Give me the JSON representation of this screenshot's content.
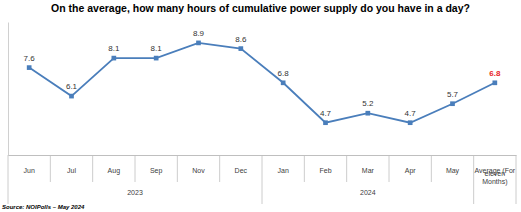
{
  "chart_data": {
    "type": "line",
    "title": "On the average, how many hours of cumulative power supply do you have in a day?",
    "categories": [
      "Jun",
      "Jul",
      "Aug",
      "Sep",
      "Nov",
      "Dec",
      "Jan",
      "Feb",
      "Mar",
      "Apr",
      "May",
      "Average (For eleven Months)"
    ],
    "x_groups": [
      "2023",
      "2023",
      "2023",
      "2023",
      "2023",
      "2023",
      "2024",
      "2024",
      "2024",
      "2024",
      "2024",
      null
    ],
    "values": [
      7.6,
      6.1,
      8.1,
      8.1,
      8.9,
      8.6,
      6.8,
      4.7,
      5.2,
      4.7,
      5.7,
      6.8
    ],
    "color": "#4a7ebb",
    "marker": "square",
    "data_labels": true,
    "grid": false,
    "tick_labels": "x",
    "ylim": [
      3,
      10
    ],
    "yticks": [],
    "source": "Source: NOIPolls – May 2024"
  }
}
